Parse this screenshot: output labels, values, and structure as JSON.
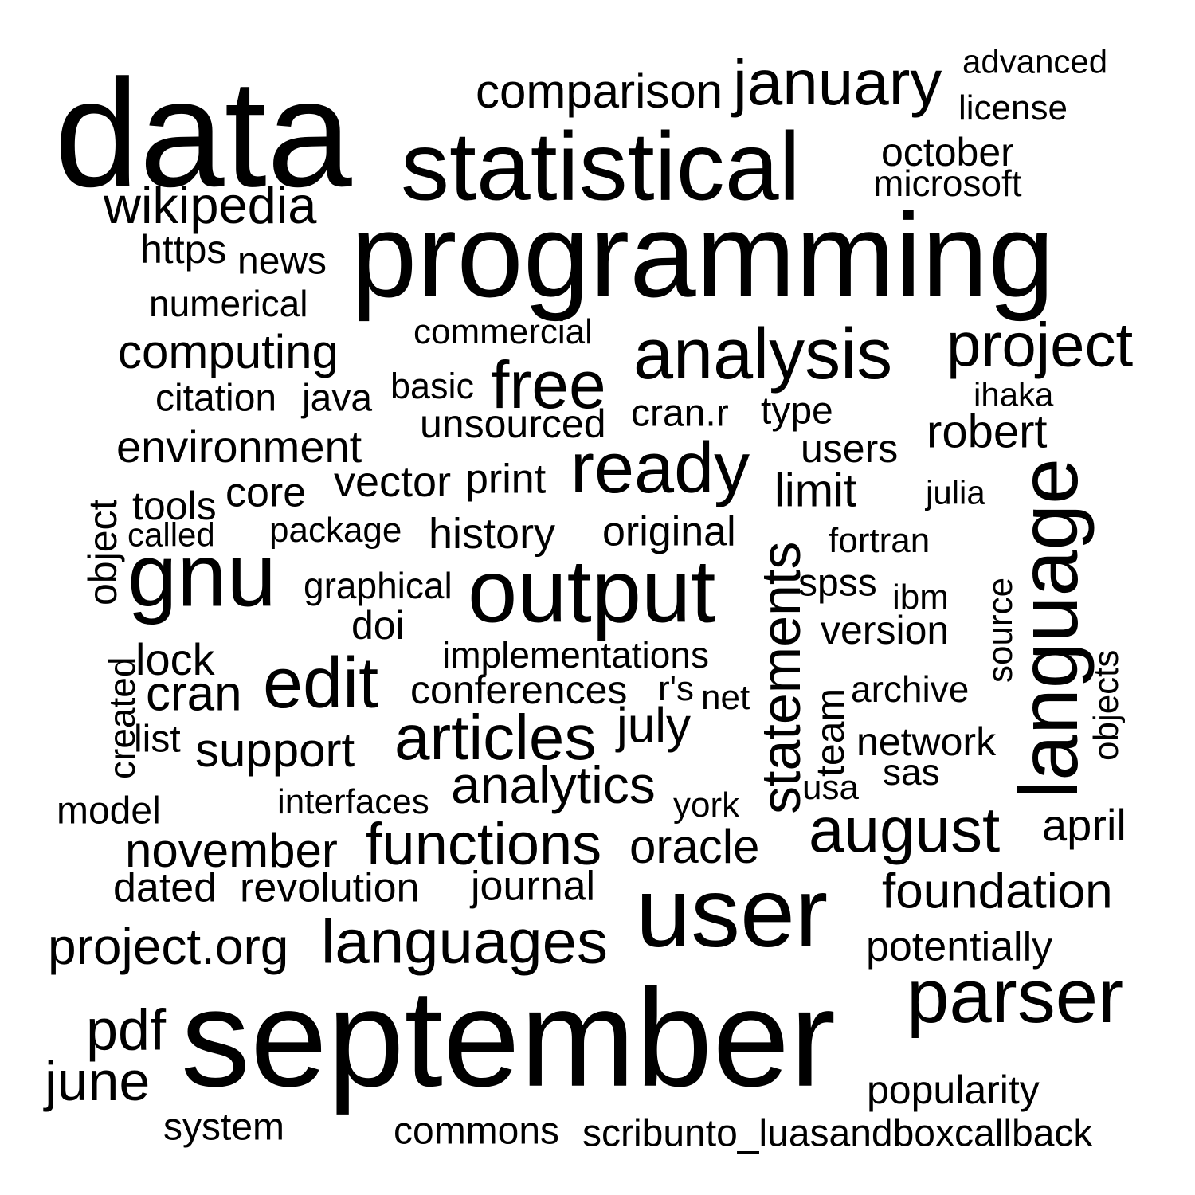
{
  "cloud": {
    "words": [
      "data",
      "statistical",
      "programming",
      "comparison",
      "january",
      "advanced",
      "license",
      "october",
      "microsoft",
      "wikipedia",
      "https",
      "news",
      "numerical",
      "commercial",
      "analysis",
      "project",
      "computing",
      "free",
      "basic",
      "citation",
      "java",
      "ihaka",
      "unsourced",
      "cran.r",
      "type",
      "robert",
      "environment",
      "ready",
      "users",
      "vector",
      "print",
      "limit",
      "julia",
      "tools",
      "core",
      "called",
      "package",
      "history",
      "original",
      "fortran",
      "object",
      "gnu",
      "output",
      "graphical",
      "spss",
      "ibm",
      "statements",
      "language",
      "source",
      "doi",
      "version",
      "implementations",
      "lock",
      "created",
      "edit",
      "cran",
      "conferences",
      "r's",
      "net",
      "archive",
      "team",
      "objects",
      "list",
      "support",
      "articles",
      "july",
      "network",
      "sas",
      "analytics",
      "usa",
      "model",
      "interfaces",
      "york",
      "august",
      "april",
      "november",
      "functions",
      "oracle",
      "dated",
      "revolution",
      "journal",
      "user",
      "foundation",
      "project.org",
      "languages",
      "potentially",
      "parser",
      "pdf",
      "september",
      "june",
      "popularity",
      "system",
      "commons",
      "scribunto_luasandboxcallback"
    ]
  }
}
